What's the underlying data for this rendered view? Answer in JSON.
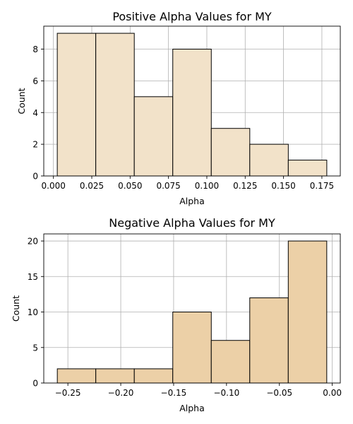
{
  "chart_data": [
    {
      "type": "bar",
      "title": "Positive Alpha Values for MY",
      "xlabel": "Alpha",
      "ylabel": "Count",
      "bin_edges": [
        0.0025,
        0.0276,
        0.0527,
        0.0778,
        0.1029,
        0.128,
        0.1531,
        0.1782
      ],
      "values": [
        9,
        9,
        5,
        8,
        3,
        2,
        1
      ],
      "xlim": [
        -0.0063,
        0.187
      ],
      "ylim": [
        0,
        9.45
      ],
      "xticks": [
        0.0,
        0.025,
        0.05,
        0.075,
        0.1,
        0.125,
        0.15,
        0.175
      ],
      "xtick_labels": [
        "0.000",
        "0.025",
        "0.050",
        "0.075",
        "0.100",
        "0.125",
        "0.150",
        "0.175"
      ],
      "yticks": [
        0,
        2,
        4,
        6,
        8
      ],
      "ytick_labels": [
        "0",
        "2",
        "4",
        "6",
        "8"
      ],
      "grid": true,
      "bar_color": "#f2e2c9"
    },
    {
      "type": "bar",
      "title": "Negative Alpha Values for MY",
      "xlabel": "Alpha",
      "ylabel": "Count",
      "bin_edges": [
        -0.26,
        -0.2236,
        -0.1872,
        -0.1508,
        -0.1144,
        -0.078,
        -0.0416,
        -0.0052
      ],
      "values": [
        2,
        2,
        2,
        10,
        6,
        12,
        20
      ],
      "xlim": [
        -0.2728,
        0.0076
      ],
      "ylim": [
        0,
        21
      ],
      "xticks": [
        -0.25,
        -0.2,
        -0.15,
        -0.1,
        -0.05,
        0.0
      ],
      "xtick_labels": [
        "−0.25",
        "−0.20",
        "−0.15",
        "−0.10",
        "−0.05",
        "0.00"
      ],
      "yticks": [
        0,
        5,
        10,
        15,
        20
      ],
      "ytick_labels": [
        "0",
        "5",
        "10",
        "15",
        "20"
      ],
      "grid": true,
      "bar_color": "#ecd0a7"
    }
  ]
}
